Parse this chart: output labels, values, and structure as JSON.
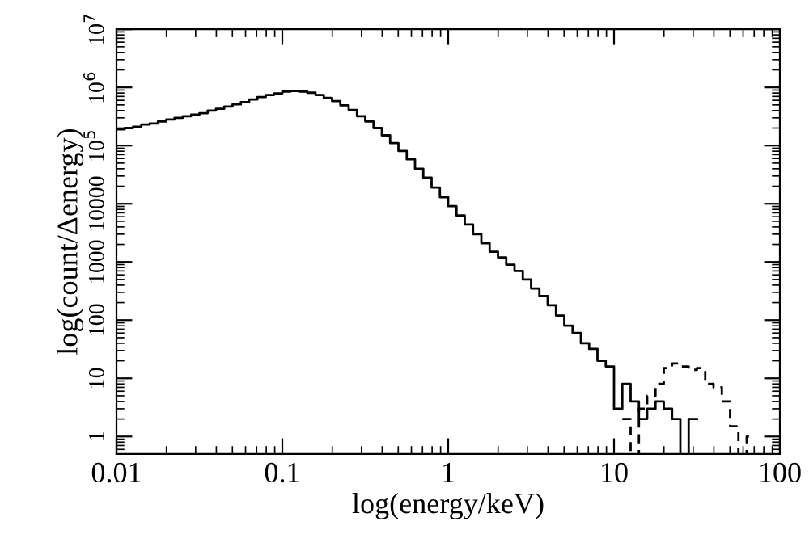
{
  "chart_data": {
    "type": "step",
    "xlabel": "log(energy/keV)",
    "ylabel": "log(count/Δenergy)",
    "log": "xy",
    "grid": false,
    "marker": "none",
    "x": [
      0.010593,
      0.011885,
      0.013335,
      0.014962,
      0.016788,
      0.018836,
      0.021135,
      0.023714,
      0.026607,
      0.029854,
      0.033497,
      0.037584,
      0.04217,
      0.047315,
      0.053088,
      0.059566,
      0.066834,
      0.074989,
      0.08414,
      0.094406,
      0.10593,
      0.11885,
      0.13335,
      0.14962,
      0.16788,
      0.18836,
      0.21135,
      0.23714,
      0.26607,
      0.29854,
      0.33497,
      0.37584,
      0.4217,
      0.47315,
      0.53088,
      0.59566,
      0.66834,
      0.74989,
      0.8414,
      0.94406,
      1.0593,
      1.1885,
      1.3335,
      1.4962,
      1.6788,
      1.8836,
      2.1135,
      2.3714,
      2.6607,
      2.9854,
      3.3497,
      3.7584,
      4.217,
      4.7315,
      5.3088,
      5.9566,
      6.6834,
      7.4989,
      8.414,
      9.4406,
      10.593,
      11.885,
      13.335,
      14.962,
      16.788,
      18.836,
      21.135,
      23.714,
      26.607,
      29.854,
      33.497,
      37.584,
      42.17,
      47.315,
      53.088,
      59.566,
      66.834
    ],
    "series": [
      {
        "color": "#000000",
        "line_style": "solid",
        "values": [
          190000,
          200000,
          210000,
          230000,
          240000,
          260000,
          280000,
          300000,
          320000,
          340000,
          360000,
          400000,
          430000,
          470000,
          510000,
          560000,
          620000,
          680000,
          740000,
          790000,
          850000,
          870000,
          850000,
          810000,
          740000,
          660000,
          580000,
          490000,
          410000,
          320000,
          260000,
          200000,
          150000,
          110000,
          81000,
          58000,
          40000,
          28000,
          19000,
          13000,
          9100,
          6300,
          4400,
          3000,
          2100,
          1500,
          1200,
          900,
          700,
          500,
          350,
          260,
          180,
          120,
          80,
          60,
          40,
          32,
          20,
          16,
          3,
          8,
          4,
          2,
          3,
          4,
          3,
          2,
          null,
          2,
          null,
          null,
          null,
          null,
          null,
          null,
          null
        ]
      },
      {
        "color": "#000000",
        "line_style": "dashed",
        "values": [
          null,
          null,
          null,
          null,
          null,
          null,
          null,
          null,
          null,
          null,
          null,
          null,
          null,
          null,
          null,
          null,
          null,
          null,
          null,
          null,
          null,
          null,
          null,
          null,
          null,
          null,
          null,
          null,
          null,
          null,
          null,
          null,
          null,
          null,
          null,
          null,
          null,
          null,
          null,
          null,
          null,
          null,
          null,
          null,
          null,
          null,
          null,
          null,
          null,
          null,
          null,
          null,
          null,
          null,
          null,
          null,
          null,
          null,
          null,
          null,
          null,
          2,
          null,
          3,
          5,
          8,
          15,
          18,
          16,
          14,
          15,
          8,
          7,
          4,
          1.5,
          null,
          1
        ]
      }
    ],
    "xlim": [
      0.01,
      100
    ],
    "xticks": [
      0.01,
      0.1,
      1,
      10,
      100
    ],
    "ylim": [
      0.5,
      10000000
    ],
    "yticks": [
      1,
      10,
      100,
      1000,
      10000,
      {
        "value": 100000,
        "label": "10$^{5}$"
      },
      {
        "value": 1000000,
        "label": "10$^{6}$"
      },
      {
        "value": 10000000,
        "label": "10$^{7}$"
      }
    ]
  }
}
